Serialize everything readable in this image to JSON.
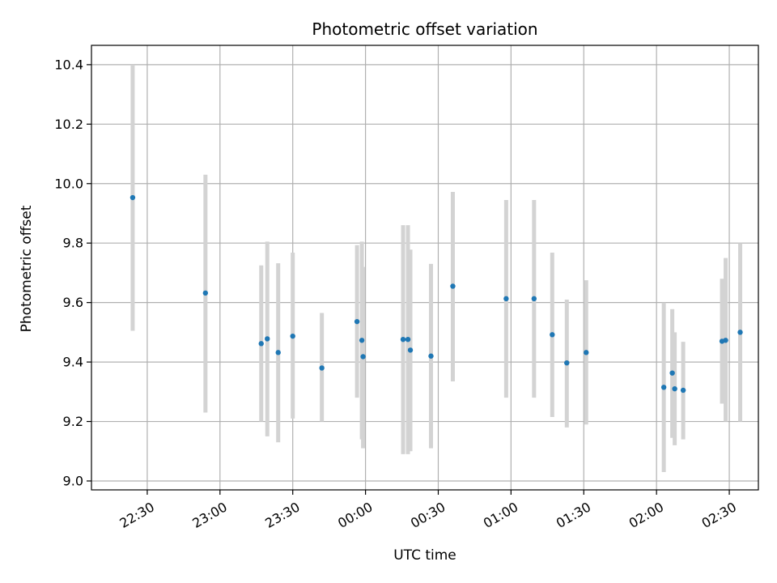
{
  "chart_data": {
    "type": "scatter",
    "title": "Photometric offset variation",
    "xlabel": "UTC time",
    "ylabel": "Photometric offset",
    "ylim": [
      8.97,
      10.465
    ],
    "xlim_minutes": [
      -113,
      162
    ],
    "y_ticks": [
      9.0,
      9.2,
      9.4,
      9.6,
      9.8,
      10.0,
      10.2,
      10.4
    ],
    "y_tick_labels": [
      "9.0",
      "9.2",
      "9.4",
      "9.6",
      "9.8",
      "10.0",
      "10.2",
      "10.4"
    ],
    "x_ticks_minutes": [
      -90,
      -60,
      -30,
      0,
      30,
      60,
      90,
      120,
      150
    ],
    "x_tick_labels": [
      "22:30",
      "23:00",
      "23:30",
      "00:00",
      "00:30",
      "01:00",
      "01:30",
      "02:00",
      "02:30"
    ],
    "grid": true,
    "marker_color": "#1f77b4",
    "errorbar_color": "#d3d3d3",
    "points": [
      {
        "t": -96,
        "y": 9.953,
        "lo": 9.505,
        "hi": 10.4
      },
      {
        "t": -66,
        "y": 9.632,
        "lo": 9.23,
        "hi": 10.03
      },
      {
        "t": -43,
        "y": 9.462,
        "lo": 9.2,
        "hi": 9.725
      },
      {
        "t": -40.5,
        "y": 9.478,
        "lo": 9.15,
        "hi": 9.805
      },
      {
        "t": -36,
        "y": 9.432,
        "lo": 9.13,
        "hi": 9.732
      },
      {
        "t": -30,
        "y": 9.487,
        "lo": 9.21,
        "hi": 9.768
      },
      {
        "t": -18,
        "y": 9.38,
        "lo": 9.2,
        "hi": 9.565
      },
      {
        "t": -3.5,
        "y": 9.536,
        "lo": 9.28,
        "hi": 9.793
      },
      {
        "t": -1.5,
        "y": 9.473,
        "lo": 9.14,
        "hi": 9.805
      },
      {
        "t": -1,
        "y": 9.418,
        "lo": 9.11,
        "hi": 9.72
      },
      {
        "t": 15.5,
        "y": 9.476,
        "lo": 9.09,
        "hi": 9.86
      },
      {
        "t": 17.5,
        "y": 9.476,
        "lo": 9.09,
        "hi": 9.86
      },
      {
        "t": 18.5,
        "y": 9.44,
        "lo": 9.1,
        "hi": 9.778
      },
      {
        "t": 27,
        "y": 9.42,
        "lo": 9.11,
        "hi": 9.73
      },
      {
        "t": 36,
        "y": 9.655,
        "lo": 9.335,
        "hi": 9.972
      },
      {
        "t": 58,
        "y": 9.613,
        "lo": 9.28,
        "hi": 9.945
      },
      {
        "t": 69.5,
        "y": 9.613,
        "lo": 9.28,
        "hi": 9.945
      },
      {
        "t": 77,
        "y": 9.492,
        "lo": 9.215,
        "hi": 9.768
      },
      {
        "t": 83,
        "y": 9.397,
        "lo": 9.18,
        "hi": 9.61
      },
      {
        "t": 91,
        "y": 9.432,
        "lo": 9.19,
        "hi": 9.675
      },
      {
        "t": 123,
        "y": 9.315,
        "lo": 9.03,
        "hi": 9.6
      },
      {
        "t": 126.5,
        "y": 9.363,
        "lo": 9.145,
        "hi": 9.578
      },
      {
        "t": 127.5,
        "y": 9.31,
        "lo": 9.12,
        "hi": 9.5
      },
      {
        "t": 131,
        "y": 9.305,
        "lo": 9.14,
        "hi": 9.468
      },
      {
        "t": 147,
        "y": 9.47,
        "lo": 9.26,
        "hi": 9.68
      },
      {
        "t": 148.5,
        "y": 9.473,
        "lo": 9.2,
        "hi": 9.75
      },
      {
        "t": 154.5,
        "y": 9.5,
        "lo": 9.2,
        "hi": 9.8
      }
    ]
  }
}
